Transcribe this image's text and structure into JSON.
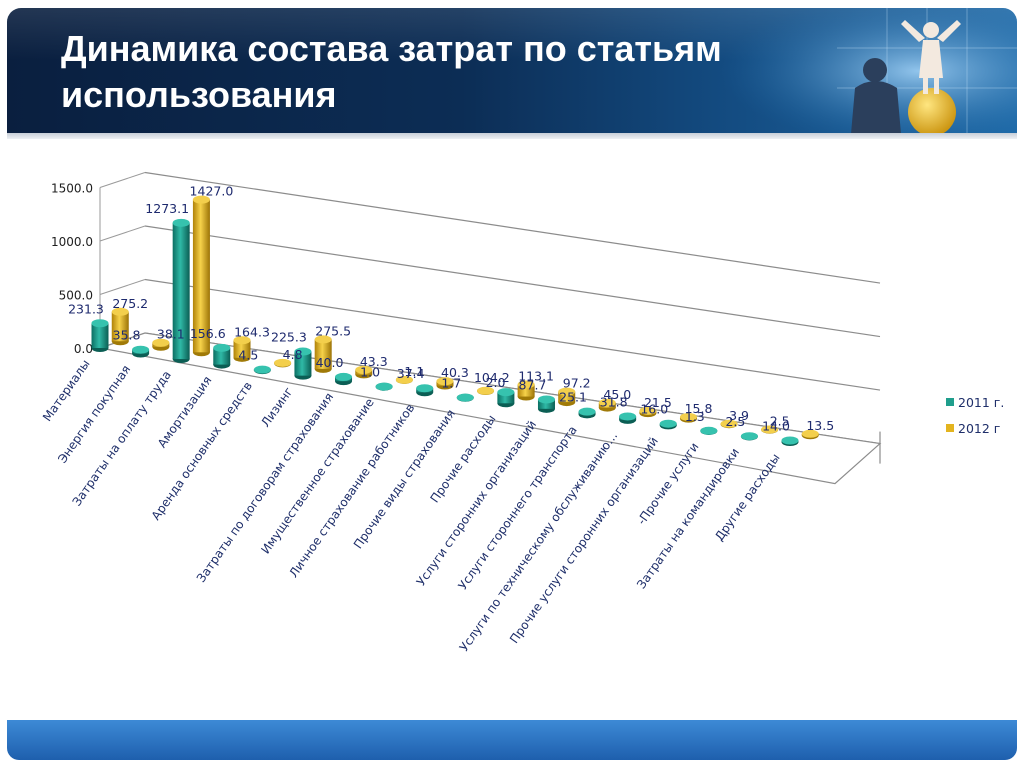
{
  "slide": {
    "title": "Динамика состава затрат по статьям использования"
  },
  "colors": {
    "series_2011": "#1f9e8c",
    "series_2012": "#e3b41f",
    "header_bg": "#0c2d55",
    "footer_bg": "#2a74c4"
  },
  "chart_data": {
    "type": "bar",
    "categories": [
      "Материалы",
      "Энергия покупная",
      "Затраты на оплату труда",
      "Амортизация",
      "Аренда основных средств",
      "Лизинг",
      "Затраты по договорам страхования",
      "Имущественное страхование",
      "Личное страхование работников",
      "Прочие виды страхования",
      "Прочие расходы",
      "Услуги сторонних организаций",
      "Услуги стороннего транспорта",
      "Услуги по техническому обслуживанию…",
      "Прочие услуги сторонних организаций",
      "-Прочие услуги",
      "Затраты на командировки",
      "Другие расходы"
    ],
    "series": [
      {
        "name": "2011 г.",
        "values": [
          231.3,
          35.8,
          1273.1,
          156.6,
          4.5,
          225.3,
          40.0,
          1.0,
          37.4,
          1.7,
          104.2,
          87.7,
          25.1,
          31.8,
          16.0,
          1.3,
          2.5,
          14.0
        ]
      },
      {
        "name": "2012 г",
        "values": [
          275.2,
          38.1,
          1427.0,
          164.3,
          4.8,
          275.5,
          43.3,
          1.1,
          40.3,
          2.0,
          113.1,
          97.2,
          45.0,
          21.5,
          15.8,
          3.9,
          2.5,
          13.5
        ]
      }
    ],
    "data_labels": [
      [
        "231.3",
        "35.8",
        "1273.1",
        "156.6",
        "4.5",
        "225.3",
        "40.0",
        "1.0",
        "37.4",
        "1.7",
        "104.2",
        "87.7",
        "25.1",
        "31.8",
        "16.0",
        "1.3",
        "2.5",
        "14.0"
      ],
      [
        "275.2",
        "38.1",
        "1427.0",
        "164.3",
        "4.8",
        "275.5",
        "43.3",
        "1.1",
        "40.3",
        "2.0",
        "113.1",
        "97.2",
        "45.0",
        "21.5",
        "15.8",
        "3.9",
        "2.5",
        "13.5"
      ]
    ],
    "y_ticks": [
      "0.0",
      "500.0",
      "1000.0",
      "1500.0"
    ],
    "ylim": [
      0,
      1500
    ],
    "grid": true,
    "legend_position": "right",
    "style": "3d-cylinder"
  }
}
